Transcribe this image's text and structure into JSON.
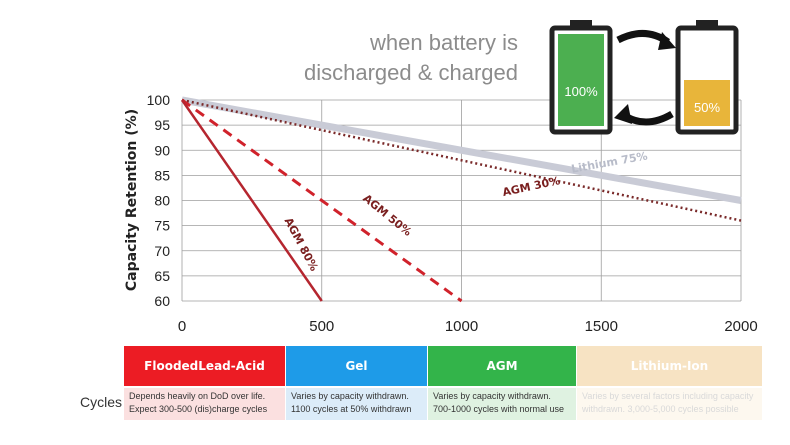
{
  "headline": [
    "when battery is",
    "discharged & charged"
  ],
  "batteries": {
    "full_label": "100%",
    "half_label": "50%",
    "full_color": "#4caf50",
    "half_color": "#e8b53a"
  },
  "chart_data": {
    "type": "line",
    "ylabel": "Capacity Retention (%)",
    "xlabel": "",
    "xlim": [
      0,
      2000
    ],
    "ylim": [
      60,
      100
    ],
    "xticks": [
      0,
      500,
      1000,
      1500,
      2000
    ],
    "yticks": [
      60,
      65,
      70,
      75,
      80,
      85,
      90,
      95,
      100
    ],
    "grid": true,
    "series": [
      {
        "name": "AGM 80%",
        "x": [
          0,
          500
        ],
        "y": [
          100,
          60
        ],
        "color": "#b5262f",
        "style": "solid"
      },
      {
        "name": "AGM 50%",
        "x": [
          0,
          1000
        ],
        "y": [
          100,
          60
        ],
        "color": "#d0222b",
        "style": "dashed"
      },
      {
        "name": "AGM 30%",
        "x": [
          0,
          2000
        ],
        "y": [
          100,
          76
        ],
        "color": "#7a2a2a",
        "style": "dotted"
      },
      {
        "name": "Lithium 75%",
        "x": [
          0,
          2000
        ],
        "y": [
          100,
          80
        ],
        "color": "#c9cbd6",
        "style": "thick"
      }
    ]
  },
  "table": {
    "row_label": "Cycles",
    "columns": [
      {
        "title": [
          "Flooded",
          "Lead-Acid"
        ],
        "text": [
          "Depends heavily on DoD over life.",
          "Expect 300-500 (dis)charge cycles"
        ],
        "color": "#ec1c24",
        "bg": "#fbe0e0"
      },
      {
        "title": [
          "Gel"
        ],
        "text": [
          "Varies by capacity withdrawn.",
          "1100 cycles at 50% withdrawn"
        ],
        "color": "#1e9be8",
        "bg": "#dcecf9"
      },
      {
        "title": [
          "AGM"
        ],
        "text": [
          "Varies by capacity withdrawn.",
          "700-1000 cycles with normal use"
        ],
        "color": "#33b44a",
        "bg": "#dff2e1"
      },
      {
        "title": [
          "Lithium-Ion"
        ],
        "text": [
          "Varies by several factors including capacity",
          "withdrawn. 3,000-5,000 cycles possible"
        ],
        "color": "#f7e3c3",
        "bg": "#fdf8ef"
      }
    ]
  }
}
